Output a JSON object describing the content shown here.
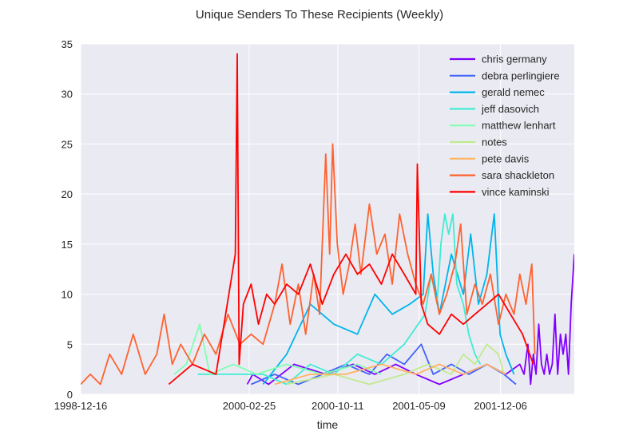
{
  "chart_data": {
    "type": "line",
    "title": "Unique Senders To These Recipients (Weekly)",
    "xlabel": "time",
    "ylabel": "",
    "x_range": [
      "1998-12-16",
      "2002-06-15"
    ],
    "ylim": [
      0,
      35
    ],
    "x_ticks": [
      "1998-12-16",
      "2000-02-25",
      "2000-10-11",
      "2001-05-09",
      "2001-12-06"
    ],
    "y_ticks": [
      0,
      5,
      10,
      15,
      20,
      25,
      30,
      35
    ],
    "grid": true,
    "legend_position": "top-right",
    "series": [
      {
        "name": "chris germany",
        "color": "#8000ff",
        "points": [
          [
            "2000-02-20",
            1
          ],
          [
            "2000-03-05",
            2
          ],
          [
            "2000-04-15",
            1
          ],
          [
            "2000-06-20",
            3
          ],
          [
            "2000-09-10",
            2
          ],
          [
            "2000-11-20",
            3
          ],
          [
            "2001-01-15",
            2
          ],
          [
            "2001-03-10",
            3
          ],
          [
            "2001-05-01",
            2
          ],
          [
            "2001-07-01",
            1
          ],
          [
            "2001-09-01",
            2
          ],
          [
            "2001-11-01",
            3
          ],
          [
            "2001-12-20",
            2
          ],
          [
            "2002-01-25",
            3
          ],
          [
            "2002-02-05",
            2
          ],
          [
            "2002-02-15",
            5
          ],
          [
            "2002-02-22",
            1
          ],
          [
            "2002-03-01",
            4
          ],
          [
            "2002-03-08",
            2
          ],
          [
            "2002-03-15",
            7
          ],
          [
            "2002-03-22",
            3
          ],
          [
            "2002-03-29",
            2
          ],
          [
            "2002-04-05",
            4
          ],
          [
            "2002-04-12",
            2
          ],
          [
            "2002-04-19",
            3
          ],
          [
            "2002-04-26",
            8
          ],
          [
            "2002-05-03",
            2
          ],
          [
            "2002-05-10",
            6
          ],
          [
            "2002-05-17",
            4
          ],
          [
            "2002-05-24",
            6
          ],
          [
            "2002-05-31",
            2
          ],
          [
            "2002-06-07",
            9
          ],
          [
            "2002-06-15",
            14
          ]
        ]
      },
      {
        "name": "debra perlingiere",
        "color": "#4062fa",
        "points": [
          [
            "2000-03-01",
            1
          ],
          [
            "2000-05-01",
            2
          ],
          [
            "2000-07-01",
            1
          ],
          [
            "2000-09-01",
            2
          ],
          [
            "2000-11-01",
            3
          ],
          [
            "2001-01-01",
            2
          ],
          [
            "2001-02-15",
            4
          ],
          [
            "2001-04-01",
            3
          ],
          [
            "2001-05-15",
            5
          ],
          [
            "2001-06-15",
            2
          ],
          [
            "2001-08-01",
            3
          ],
          [
            "2001-09-15",
            2
          ],
          [
            "2001-11-01",
            3
          ],
          [
            "2001-12-15",
            2
          ],
          [
            "2002-01-15",
            1
          ]
        ]
      },
      {
        "name": "gerald nemec",
        "color": "#00b5eb",
        "points": [
          [
            "2000-04-01",
            1
          ],
          [
            "2000-06-01",
            4
          ],
          [
            "2000-08-01",
            9
          ],
          [
            "2000-10-01",
            7
          ],
          [
            "2000-12-01",
            6
          ],
          [
            "2001-01-15",
            10
          ],
          [
            "2001-03-01",
            8
          ],
          [
            "2001-04-15",
            9
          ],
          [
            "2001-05-20",
            10
          ],
          [
            "2001-06-01",
            18
          ],
          [
            "2001-06-15",
            12
          ],
          [
            "2001-07-01",
            8
          ],
          [
            "2001-08-01",
            14
          ],
          [
            "2001-09-01",
            10
          ],
          [
            "2001-09-20",
            16
          ],
          [
            "2001-10-10",
            9
          ],
          [
            "2001-11-01",
            12
          ],
          [
            "2001-11-20",
            18
          ],
          [
            "2001-12-05",
            6
          ],
          [
            "2001-12-20",
            4
          ],
          [
            "2002-01-10",
            2
          ]
        ]
      },
      {
        "name": "jeff dasovich",
        "color": "#40ecd4",
        "points": [
          [
            "1999-10-15",
            2
          ],
          [
            "2000-04-01",
            2
          ],
          [
            "2000-06-01",
            1
          ],
          [
            "2000-08-01",
            3
          ],
          [
            "2000-10-01",
            2
          ],
          [
            "2000-12-01",
            4
          ],
          [
            "2001-02-01",
            3
          ],
          [
            "2001-04-01",
            5
          ],
          [
            "2001-05-25",
            8
          ],
          [
            "2001-06-10",
            12
          ],
          [
            "2001-06-25",
            9
          ],
          [
            "2001-07-05",
            15
          ],
          [
            "2001-07-15",
            18
          ],
          [
            "2001-07-25",
            16
          ],
          [
            "2001-08-05",
            18
          ],
          [
            "2001-08-15",
            11
          ],
          [
            "2001-09-01",
            9
          ],
          [
            "2001-09-15",
            6
          ],
          [
            "2001-10-01",
            4
          ],
          [
            "2001-10-15",
            3
          ]
        ]
      },
      {
        "name": "matthew lenhart",
        "color": "#80ffb4",
        "points": [
          [
            "1999-08-15",
            2
          ],
          [
            "1999-09-15",
            3
          ],
          [
            "1999-10-20",
            7
          ],
          [
            "1999-11-15",
            2
          ],
          [
            "2000-01-15",
            3
          ],
          [
            "2000-03-15",
            2
          ],
          [
            "2000-06-01",
            3
          ],
          [
            "2000-09-01",
            2
          ],
          [
            "2000-12-01",
            3
          ],
          [
            "2001-02-01",
            2
          ]
        ]
      },
      {
        "name": "notes",
        "color": "#c0eb8d",
        "points": [
          [
            "2000-06-01",
            1
          ],
          [
            "2000-10-01",
            2
          ],
          [
            "2001-01-01",
            1
          ],
          [
            "2001-04-01",
            2
          ],
          [
            "2001-06-01",
            3
          ],
          [
            "2001-08-01",
            2
          ],
          [
            "2001-09-01",
            4
          ],
          [
            "2001-10-01",
            3
          ],
          [
            "2001-11-01",
            5
          ],
          [
            "2001-12-01",
            4
          ],
          [
            "2001-12-15",
            2
          ]
        ]
      },
      {
        "name": "pete davis",
        "color": "#ffb360",
        "points": [
          [
            "2000-05-01",
            1
          ],
          [
            "2000-08-01",
            2
          ],
          [
            "2000-11-01",
            2
          ],
          [
            "2001-02-01",
            3
          ],
          [
            "2001-05-01",
            2
          ],
          [
            "2001-07-01",
            3
          ],
          [
            "2001-09-01",
            2
          ],
          [
            "2001-11-01",
            3
          ],
          [
            "2001-12-20",
            2
          ]
        ]
      },
      {
        "name": "sara shackleton",
        "color": "#ff6230",
        "points": [
          [
            "1998-12-16",
            1
          ],
          [
            "1999-01-10",
            2
          ],
          [
            "1999-02-05",
            1
          ],
          [
            "1999-03-01",
            4
          ],
          [
            "1999-04-01",
            2
          ],
          [
            "1999-05-01",
            6
          ],
          [
            "1999-06-01",
            2
          ],
          [
            "1999-07-01",
            4
          ],
          [
            "1999-07-20",
            8
          ],
          [
            "1999-08-10",
            3
          ],
          [
            "1999-09-01",
            5
          ],
          [
            "1999-10-01",
            3
          ],
          [
            "1999-11-01",
            6
          ],
          [
            "1999-12-01",
            4
          ],
          [
            "2000-01-01",
            8
          ],
          [
            "2000-02-01",
            5
          ],
          [
            "2000-03-01",
            6
          ],
          [
            "2000-04-01",
            5
          ],
          [
            "2000-05-01",
            9
          ],
          [
            "2000-05-20",
            13
          ],
          [
            "2000-06-10",
            7
          ],
          [
            "2000-07-01",
            11
          ],
          [
            "2000-07-20",
            6
          ],
          [
            "2000-08-10",
            12
          ],
          [
            "2000-08-25",
            8
          ],
          [
            "2000-09-10",
            24
          ],
          [
            "2000-09-20",
            14
          ],
          [
            "2000-09-28",
            25
          ],
          [
            "2000-10-10",
            15
          ],
          [
            "2000-10-25",
            10
          ],
          [
            "2000-11-10",
            13
          ],
          [
            "2000-11-25",
            17
          ],
          [
            "2000-12-10",
            12
          ],
          [
            "2001-01-01",
            19
          ],
          [
            "2001-01-20",
            14
          ],
          [
            "2001-02-10",
            16
          ],
          [
            "2001-03-01",
            11
          ],
          [
            "2001-03-20",
            18
          ],
          [
            "2001-04-10",
            14
          ],
          [
            "2001-05-01",
            11
          ],
          [
            "2001-05-20",
            9
          ],
          [
            "2001-06-10",
            12
          ],
          [
            "2001-07-01",
            8
          ],
          [
            "2001-07-20",
            10
          ],
          [
            "2001-08-10",
            13
          ],
          [
            "2001-08-25",
            17
          ],
          [
            "2001-09-10",
            8
          ],
          [
            "2001-10-01",
            11
          ],
          [
            "2001-10-20",
            9
          ],
          [
            "2001-11-10",
            12
          ],
          [
            "2001-12-01",
            7
          ],
          [
            "2001-12-20",
            10
          ],
          [
            "2002-01-10",
            8
          ],
          [
            "2002-01-25",
            12
          ],
          [
            "2002-02-10",
            9
          ],
          [
            "2002-02-25",
            13
          ],
          [
            "2002-03-05",
            4
          ]
        ]
      },
      {
        "name": "vince kaminski",
        "color": "#ff0000",
        "points": [
          [
            "1999-08-01",
            1
          ],
          [
            "1999-10-01",
            3
          ],
          [
            "1999-12-01",
            2
          ],
          [
            "2000-01-20",
            14
          ],
          [
            "2000-01-25",
            34
          ],
          [
            "2000-01-30",
            3
          ],
          [
            "2000-02-10",
            9
          ],
          [
            "2000-03-01",
            11
          ],
          [
            "2000-03-20",
            7
          ],
          [
            "2000-04-10",
            10
          ],
          [
            "2000-05-01",
            9
          ],
          [
            "2000-06-01",
            11
          ],
          [
            "2000-07-01",
            10
          ],
          [
            "2000-08-01",
            13
          ],
          [
            "2000-09-01",
            9
          ],
          [
            "2000-10-01",
            12
          ],
          [
            "2000-11-01",
            14
          ],
          [
            "2000-12-01",
            12
          ],
          [
            "2001-01-01",
            13
          ],
          [
            "2001-02-01",
            11
          ],
          [
            "2001-03-01",
            14
          ],
          [
            "2001-04-01",
            12
          ],
          [
            "2001-05-01",
            10
          ],
          [
            "2001-05-05",
            23
          ],
          [
            "2001-05-15",
            9
          ],
          [
            "2001-06-01",
            7
          ],
          [
            "2001-07-01",
            6
          ],
          [
            "2001-08-01",
            8
          ],
          [
            "2001-09-01",
            7
          ],
          [
            "2001-10-01",
            8
          ],
          [
            "2001-11-01",
            9
          ],
          [
            "2001-12-01",
            10
          ],
          [
            "2002-01-01",
            8
          ],
          [
            "2002-02-01",
            6
          ],
          [
            "2002-03-01",
            3
          ]
        ]
      }
    ]
  }
}
